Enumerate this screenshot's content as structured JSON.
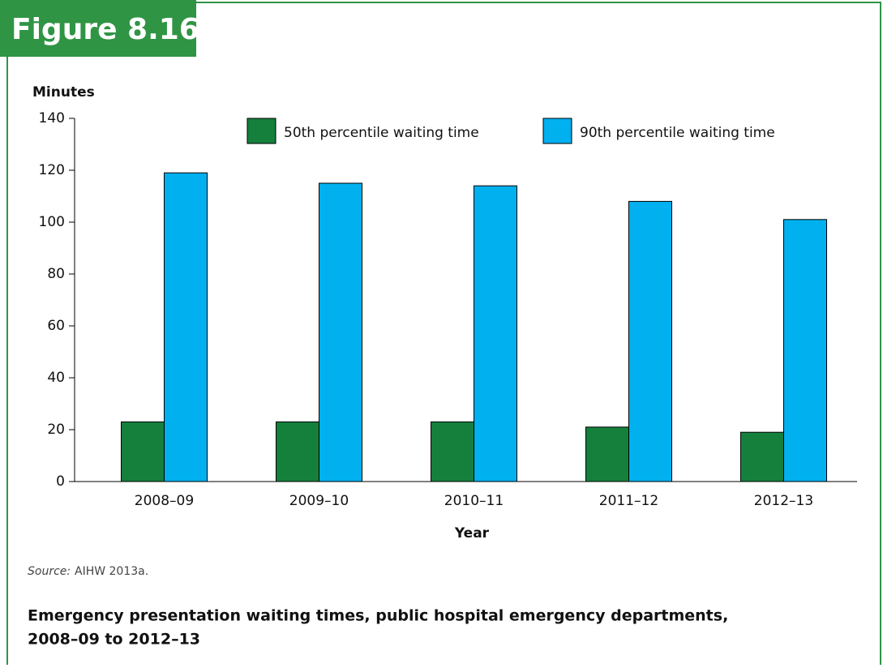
{
  "figure_label": "Figure 8.16",
  "chart_data": {
    "type": "bar",
    "y_label": "Minutes",
    "x_label": "Year",
    "categories": [
      "2008–09",
      "2009–10",
      "2010–11",
      "2011–12",
      "2012–13"
    ],
    "series": [
      {
        "name": "50th percentile waiting time",
        "color": "#15803c",
        "values": [
          23,
          23,
          23,
          21,
          19
        ]
      },
      {
        "name": "90th percentile waiting time",
        "color": "#00b0ef",
        "values": [
          119,
          115,
          114,
          108,
          101
        ]
      }
    ],
    "ylim": [
      0,
      140
    ],
    "yticks": [
      0,
      20,
      40,
      60,
      80,
      100,
      120,
      140
    ]
  },
  "source_label": "Source:",
  "source": "AIHW 2013a.",
  "caption": [
    "Emergency presentation waiting times, public hospital emergency departments,",
    "2008–09 to 2012–13"
  ]
}
